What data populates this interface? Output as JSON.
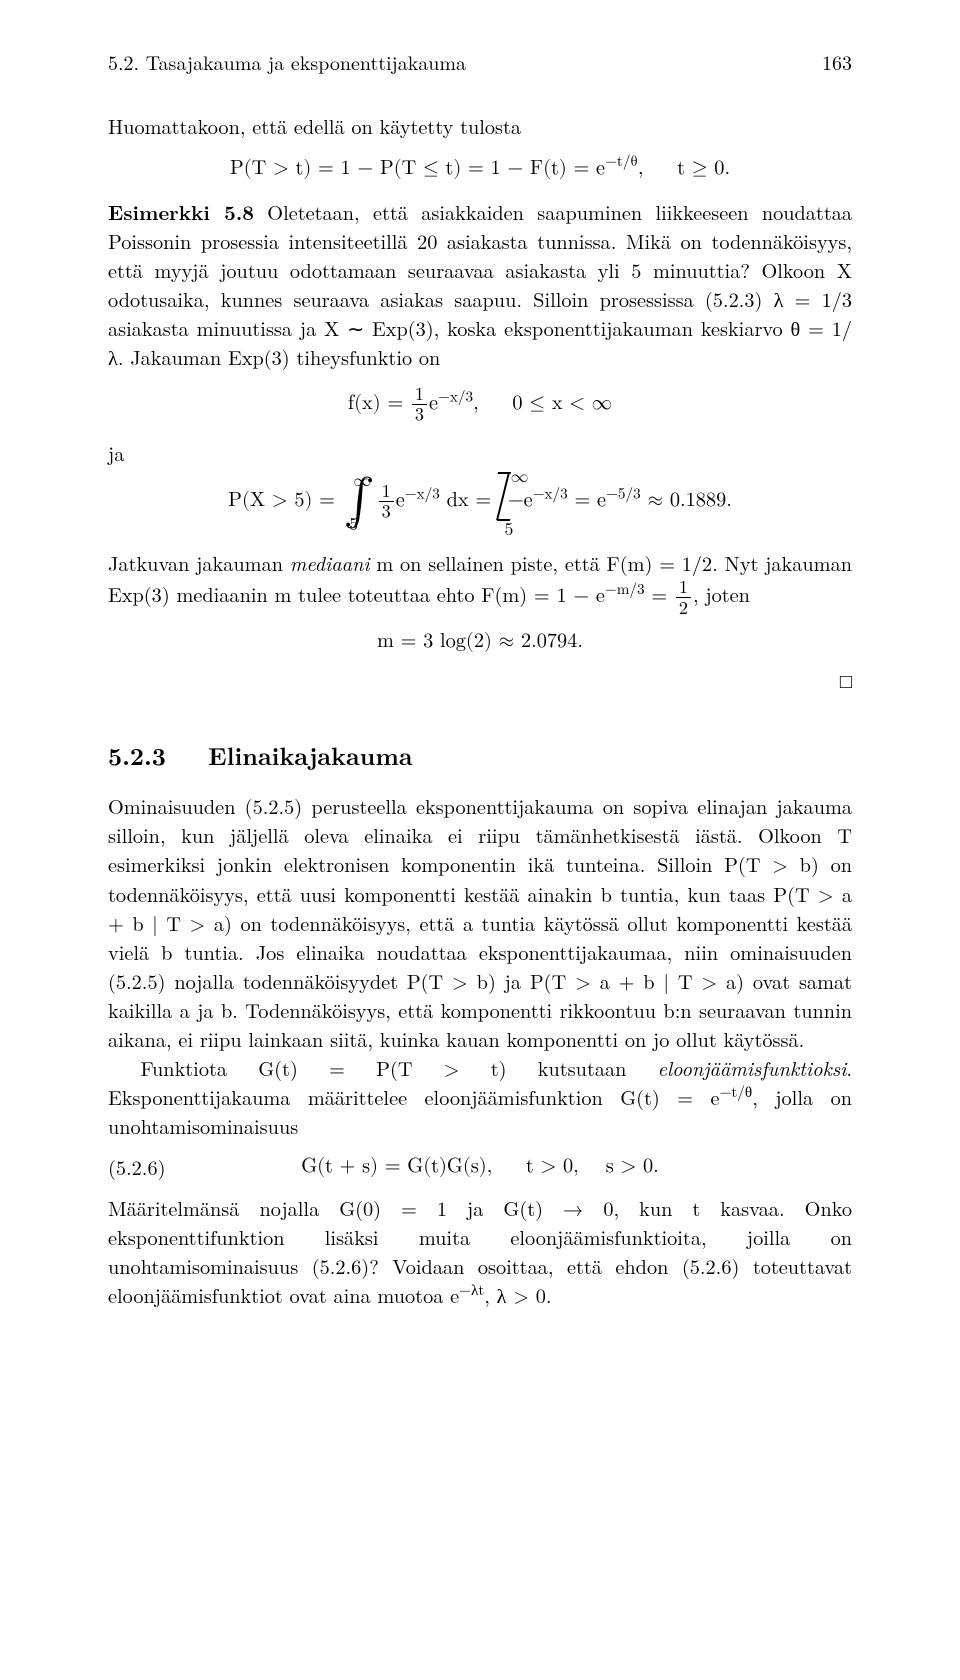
{
  "header": {
    "section_label": "5.2. Tasajakauma ja eksponenttijakauma",
    "page_number": "163"
  },
  "intro_line": "Huomattakoon, että edellä on käytetty tulosta",
  "eq_intro": "P(T > t) = 1 − P(T ≤ t) = 1 − F(t) = e<sup>−t/θ</sup>, &nbsp;&nbsp;&nbsp; t ≥ 0.",
  "esimerkki_lead": "Esimerkki 5.8",
  "esimerkki_body1": " Oletetaan, että asiakkaiden saapuminen liikkeeseen noudattaa Poissonin prosessia intensiteetillä 20 asiakasta tunnissa. Mikä on todennäköisyys, että myyjä joutuu odottamaan seuraavaa asiakasta yli 5 minuuttia? Olkoon X odotusaika, kunnes seuraava asiakas saapuu. Silloin prosessissa (5.2.3) λ = 1/3 asiakasta minuutissa ja X ∼ Exp(3), koska eksponenttijakauman keskiarvo θ = 1/λ. Jakauman Exp(3) tiheysfunktio on",
  "eq_density": "f(x) = <span class=\"frac\"><span class=\"num\">1</span><span class=\"den\">3</span></span>e<sup>−x/3</sup>, &nbsp;&nbsp;&nbsp; 0 ≤ x < ∞",
  "ja": "ja",
  "eq_prob": "P(X > 5) = <span class=\"bigint\">∫<span class=\"ulim\">∞</span><span class=\"llim\">5</span></span><span class=\"frac\"><span class=\"num\">1</span><span class=\"den\">3</span></span>e<sup>−x/3</sup> dx = <span class=\"slashint\"><span class=\"barshape\"></span><span class=\"ulim\">∞</span><span class=\"llim\">5</span></span>−e<sup>−x/3</sup> = e<sup>−5/3</sup> ≈ 0.1889.",
  "median_text1": "Jatkuvan jakauman ",
  "median_em": "mediaani",
  "median_text2": " m on sellainen piste, että F(m) = 1/2. Nyt jakauman Exp(3) mediaanin m tulee toteuttaa ehto F(m) = 1 − e<sup>−m/3</sup> = <span class=\"frac\"><span class=\"num\">1</span><span class=\"den\">2</span></span>, joten",
  "eq_median": "m = 3 log(2) ≈ 2.0794.",
  "qed": "□",
  "subsection": "5.2.3&nbsp;&nbsp;&nbsp;Elinaikajakauma",
  "body_p1": "Ominaisuuden (5.2.5) perusteella eksponenttijakauma on sopiva elinajan jakauma silloin, kun jäljellä oleva elinaika ei riipu tämänhetkisestä iästä. Olkoon T esimerkiksi jonkin elektronisen komponentin ikä tunteina. Silloin P(T > b) on todennäköisyys, että uusi komponentti kestää ainakin b tuntia, kun taas P(T > a + b | T > a) on todennäköisyys, että a tuntia käytössä ollut komponentti kestää vielä b tuntia. Jos elinaika noudattaa eksponenttijakaumaa, niin ominaisuuden (5.2.5) nojalla todennäköisyydet P(T > b) ja P(T > a + b | T > a) ovat samat kaikilla a ja b. Todennäköisyys, että komponentti rikkoontuu b:n seuraavan tunnin aikana, ei riipu lainkaan siitä, kuinka kauan komponentti on jo ollut käytössä.",
  "body_p2_a": "Funktiota G(t) = P(T > t) kutsutaan ",
  "body_p2_em": "eloonjäämisfunktioksi",
  "body_p2_b": ". Eksponenttijakauma määrittelee eloonjäämisfunktion G(t) = e<sup>−t/θ</sup>, jolla on unohtamisominaisuus",
  "eq_label": "(5.2.6)",
  "eq_G": "G(t + s) = G(t)G(s), &nbsp;&nbsp;&nbsp; t > 0, &nbsp;&nbsp; s > 0.",
  "body_p3": "Määritelmänsä nojalla G(0) = 1 ja G(t) → 0, kun t kasvaa. Onko eksponenttifunktion lisäksi muita eloonjäämisfunktioita, joilla on unohtamisominaisuus (5.2.6)? Voidaan osoittaa, että ehdon (5.2.6) toteuttavat eloonjäämisfunktiot ovat aina muotoa e<sup>−λt</sup>, λ > 0."
}
